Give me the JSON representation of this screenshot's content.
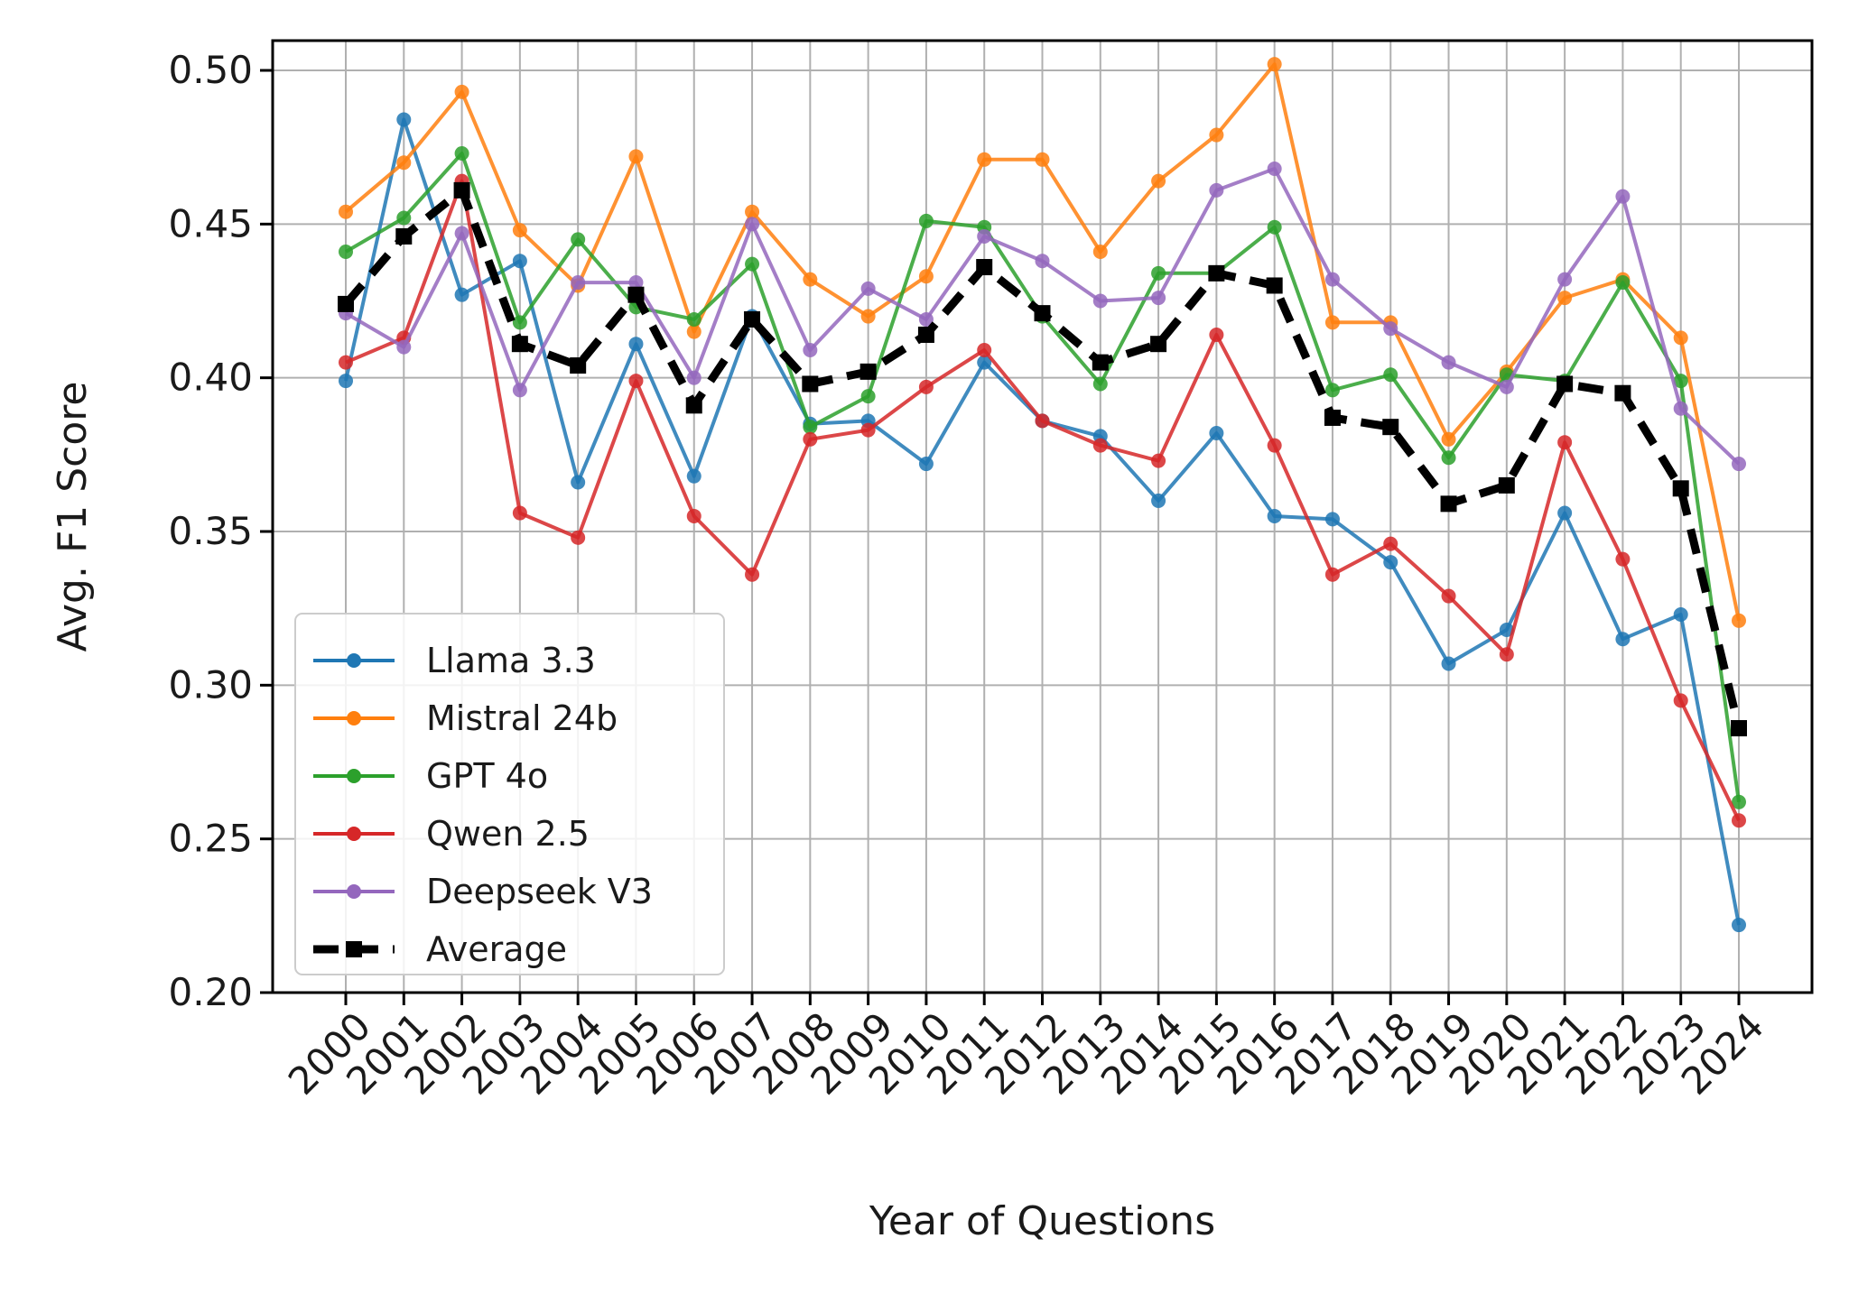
{
  "chart_data": {
    "type": "line",
    "xlabel": "Year of Questions",
    "ylabel": "Avg. F1 Score",
    "ylim": [
      0.2,
      0.51
    ],
    "yticks": [
      "0.20",
      "0.25",
      "0.30",
      "0.35",
      "0.40",
      "0.45",
      "0.50"
    ],
    "grid": true,
    "legend_position": "lower-left",
    "categories": [
      "2000",
      "2001",
      "2002",
      "2003",
      "2004",
      "2005",
      "2006",
      "2007",
      "2008",
      "2009",
      "2010",
      "2011",
      "2012",
      "2013",
      "2014",
      "2015",
      "2016",
      "2017",
      "2018",
      "2019",
      "2020",
      "2021",
      "2022",
      "2023",
      "2024"
    ],
    "series": [
      {
        "name": "Llama 3.3",
        "color": "#1f77b4",
        "style": "solid",
        "values": [
          0.399,
          0.484,
          0.427,
          0.438,
          0.366,
          0.411,
          0.368,
          0.42,
          0.385,
          0.386,
          0.372,
          0.405,
          0.386,
          0.381,
          0.36,
          0.382,
          0.355,
          0.354,
          0.34,
          0.307,
          0.318,
          0.356,
          0.315,
          0.323,
          0.222
        ]
      },
      {
        "name": "Mistral 24b",
        "color": "#ff7f0e",
        "style": "solid",
        "values": [
          0.454,
          0.47,
          0.493,
          0.448,
          0.43,
          0.472,
          0.415,
          0.454,
          0.432,
          0.42,
          0.433,
          0.471,
          0.471,
          0.441,
          0.464,
          0.479,
          0.502,
          0.418,
          0.418,
          0.38,
          0.402,
          0.426,
          0.432,
          0.413,
          0.321
        ]
      },
      {
        "name": "GPT 4o",
        "color": "#2ca02c",
        "style": "solid",
        "values": [
          0.441,
          0.452,
          0.473,
          0.418,
          0.445,
          0.423,
          0.419,
          0.437,
          0.384,
          0.394,
          0.451,
          0.449,
          0.42,
          0.398,
          0.434,
          0.434,
          0.449,
          0.396,
          0.401,
          0.374,
          0.401,
          0.399,
          0.431,
          0.399,
          0.262
        ]
      },
      {
        "name": "Qwen 2.5",
        "color": "#d62728",
        "style": "solid",
        "values": [
          0.405,
          0.413,
          0.464,
          0.356,
          0.348,
          0.399,
          0.355,
          0.336,
          0.38,
          0.383,
          0.397,
          0.409,
          0.386,
          0.378,
          0.373,
          0.414,
          0.378,
          0.336,
          0.346,
          0.329,
          0.31,
          0.379,
          0.341,
          0.295,
          0.256
        ]
      },
      {
        "name": "Deepseek V3",
        "color": "#9467bd",
        "style": "solid",
        "values": [
          0.421,
          0.41,
          0.447,
          0.396,
          0.431,
          0.431,
          0.4,
          0.45,
          0.409,
          0.429,
          0.419,
          0.446,
          0.438,
          0.425,
          0.426,
          0.461,
          0.468,
          0.432,
          0.416,
          0.405,
          0.397,
          0.432,
          0.459,
          0.39,
          0.372
        ]
      },
      {
        "name": "Average",
        "color": "#000000",
        "style": "dashed",
        "values": [
          0.424,
          0.446,
          0.461,
          0.411,
          0.404,
          0.427,
          0.391,
          0.419,
          0.398,
          0.402,
          0.414,
          0.436,
          0.421,
          0.405,
          0.411,
          0.434,
          0.43,
          0.387,
          0.384,
          0.359,
          0.365,
          0.398,
          0.395,
          0.364,
          0.286
        ]
      }
    ]
  }
}
